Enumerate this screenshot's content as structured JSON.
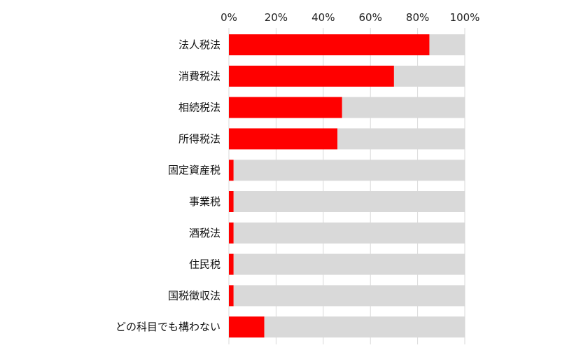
{
  "chart_data": {
    "type": "bar",
    "orientation": "horizontal",
    "stacked_to_100": true,
    "categories": [
      "法人税法",
      "消費税法",
      "相続税法",
      "所得税法",
      "固定資産税",
      "事業税",
      "酒税法",
      "住民税",
      "国税徴収法",
      "どの科目でも構わない"
    ],
    "series": [
      {
        "values": [
          85,
          70,
          48,
          46,
          2,
          2,
          2,
          2,
          2,
          15
        ]
      },
      {
        "values": [
          15,
          30,
          52,
          54,
          98,
          98,
          98,
          98,
          98,
          85
        ]
      }
    ],
    "xlim": [
      0,
      100
    ],
    "xticks": [
      0,
      20,
      40,
      60,
      80,
      100
    ],
    "xtick_labels": [
      "0%",
      "20%",
      "40%",
      "60%",
      "80%",
      "100%"
    ],
    "xaxis_position": "top",
    "grid": true,
    "legend": "none",
    "colors": {
      "primary": "#ff0000",
      "remainder": "#d9d9d9",
      "grid": "#d9d9d9"
    }
  }
}
